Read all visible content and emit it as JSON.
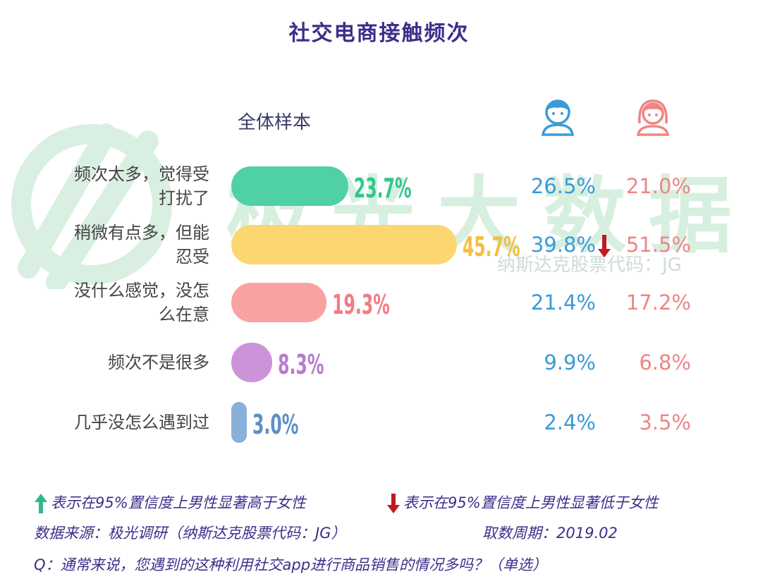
{
  "title": "社交电商接触频次",
  "sample_label": "全体样本",
  "watermark": {
    "text": "极光大数据",
    "sub": "纳斯达克股票代码：JG"
  },
  "icons": {
    "male": "male-user-icon",
    "female": "female-user-icon"
  },
  "colors": {
    "title": "#3a2f8a",
    "male": "#3b9ad9",
    "female": "#ef8585",
    "bars": [
      "#4fd1a5",
      "#fcd66e",
      "#f8a2a2",
      "#cc93d8",
      "#88b0d8"
    ],
    "labels": [
      "#34c58e",
      "#f3bf3d",
      "#f27b83",
      "#b67bcc",
      "#5d8fc4"
    ],
    "down_arrow": "#c0191f",
    "up_arrow": "#2fb98b"
  },
  "chart_data": {
    "type": "bar",
    "orientation": "horizontal",
    "title": "社交电商接触频次",
    "categories": [
      [
        "频次太多，觉得受",
        "打扰了"
      ],
      [
        "稍微有点多，但能",
        "忍受"
      ],
      [
        "没什么感觉，没怎",
        "么在意"
      ],
      [
        "频次不是很多"
      ],
      [
        "几乎没怎么遇到过"
      ]
    ],
    "series": [
      {
        "name": "全体样本",
        "values": [
          23.7,
          45.7,
          19.3,
          8.3,
          3.0
        ],
        "labels": [
          "23.7%",
          "45.7%",
          "19.3%",
          "8.3%",
          "3.0%"
        ]
      }
    ],
    "male": {
      "values": [
        26.5,
        39.8,
        21.4,
        9.9,
        2.4
      ],
      "labels": [
        "26.5%",
        "39.8%",
        "21.4%",
        "9.9%",
        "2.4%"
      ]
    },
    "female": {
      "values": [
        21.0,
        51.5,
        17.2,
        6.8,
        3.5
      ],
      "labels": [
        "21.0%",
        "51.5%",
        "17.2%",
        "6.8%",
        "3.5%"
      ]
    },
    "significance_down": [
      false,
      true,
      false,
      false,
      false
    ]
  },
  "legend": {
    "up": "表示在95%置信度上男性显著高于女性",
    "down": "表示在95%置信度上男性显著低于女性"
  },
  "source": "数据来源：极光调研（纳斯达克股票代码：JG）",
  "period": "取数周期：2019.02",
  "question": "Q：通常来说，您遇到的这种利用社交app进行商品销售的情况多吗？（单选）"
}
